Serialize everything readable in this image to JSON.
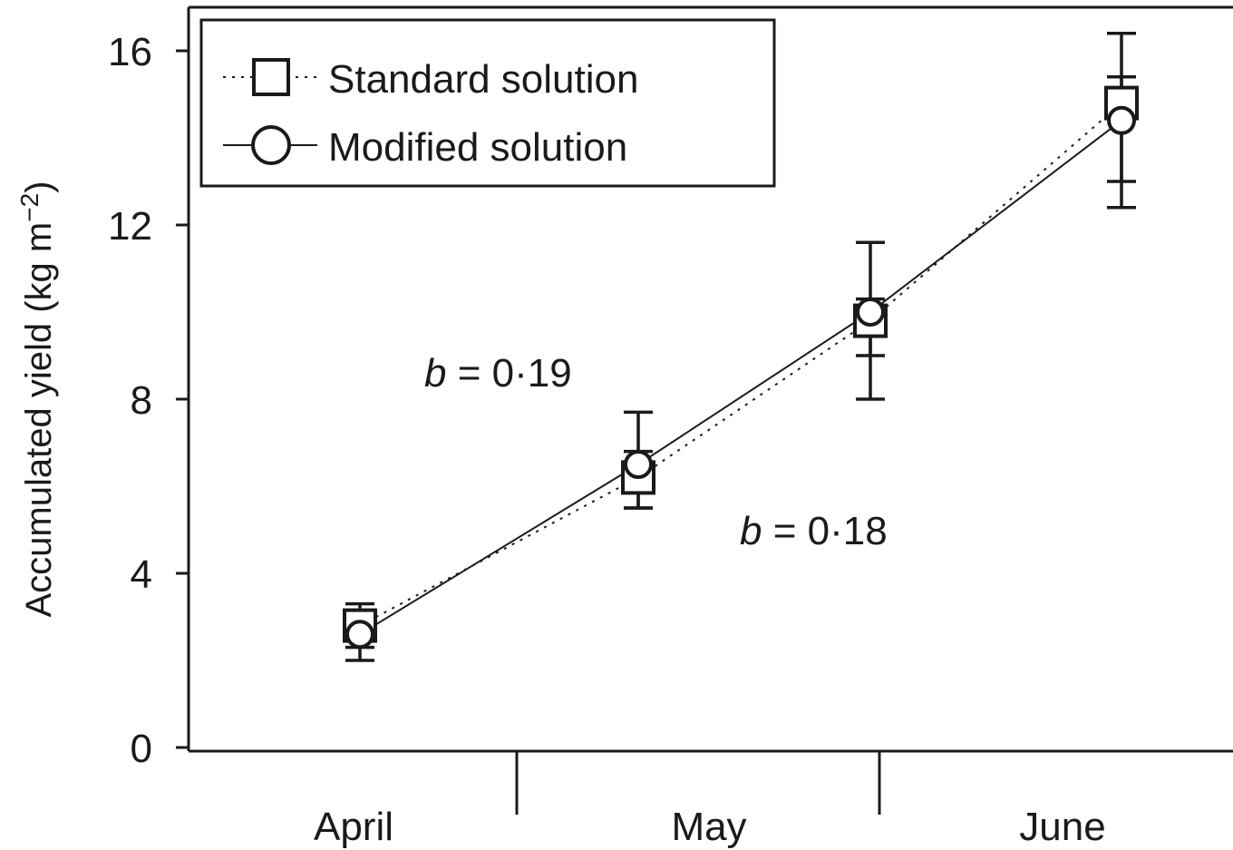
{
  "chart_data": {
    "type": "line",
    "title": "",
    "xlabel": "",
    "ylabel": "Accumulated yield (kg m",
    "ylabel_sup": "−2",
    "ylabel_close": ")",
    "ylim": [
      0,
      16
    ],
    "yticks": [
      {
        "value": 0,
        "label": "0"
      },
      {
        "value": 4,
        "label": "4"
      },
      {
        "value": 8,
        "label": "8"
      },
      {
        "value": 12,
        "label": "12"
      },
      {
        "value": 16,
        "label": "16"
      }
    ],
    "categories": [
      "April",
      "May",
      "June"
    ],
    "x": [
      0,
      1,
      2,
      3
    ],
    "xlim": [
      -0.5,
      3.5
    ],
    "grid": false,
    "legend": {
      "placement": "top-left",
      "entries": [
        "Standard solution",
        "Modified solution"
      ]
    },
    "series": [
      {
        "name": "Standard solution",
        "marker": "square",
        "line": "dotted",
        "values": [
          2.8,
          6.2,
          9.8,
          14.8
        ],
        "err_low": [
          2.3,
          5.5,
          9.0,
          13.0
        ],
        "err_high": [
          3.3,
          6.8,
          10.3,
          15.4
        ]
      },
      {
        "name": "Modified solution",
        "marker": "circle",
        "line": "solid",
        "values": [
          2.6,
          6.5,
          10.0,
          14.4
        ],
        "err_low": [
          2.0,
          5.5,
          8.0,
          12.4
        ],
        "err_high": [
          3.0,
          7.7,
          11.6,
          16.4
        ]
      }
    ],
    "annotations": [
      {
        "label": "b",
        "text": " = 0·19",
        "near": "upper-left of line"
      },
      {
        "label": "b",
        "text": " = 0·18",
        "near": "lower-right of line"
      }
    ]
  }
}
